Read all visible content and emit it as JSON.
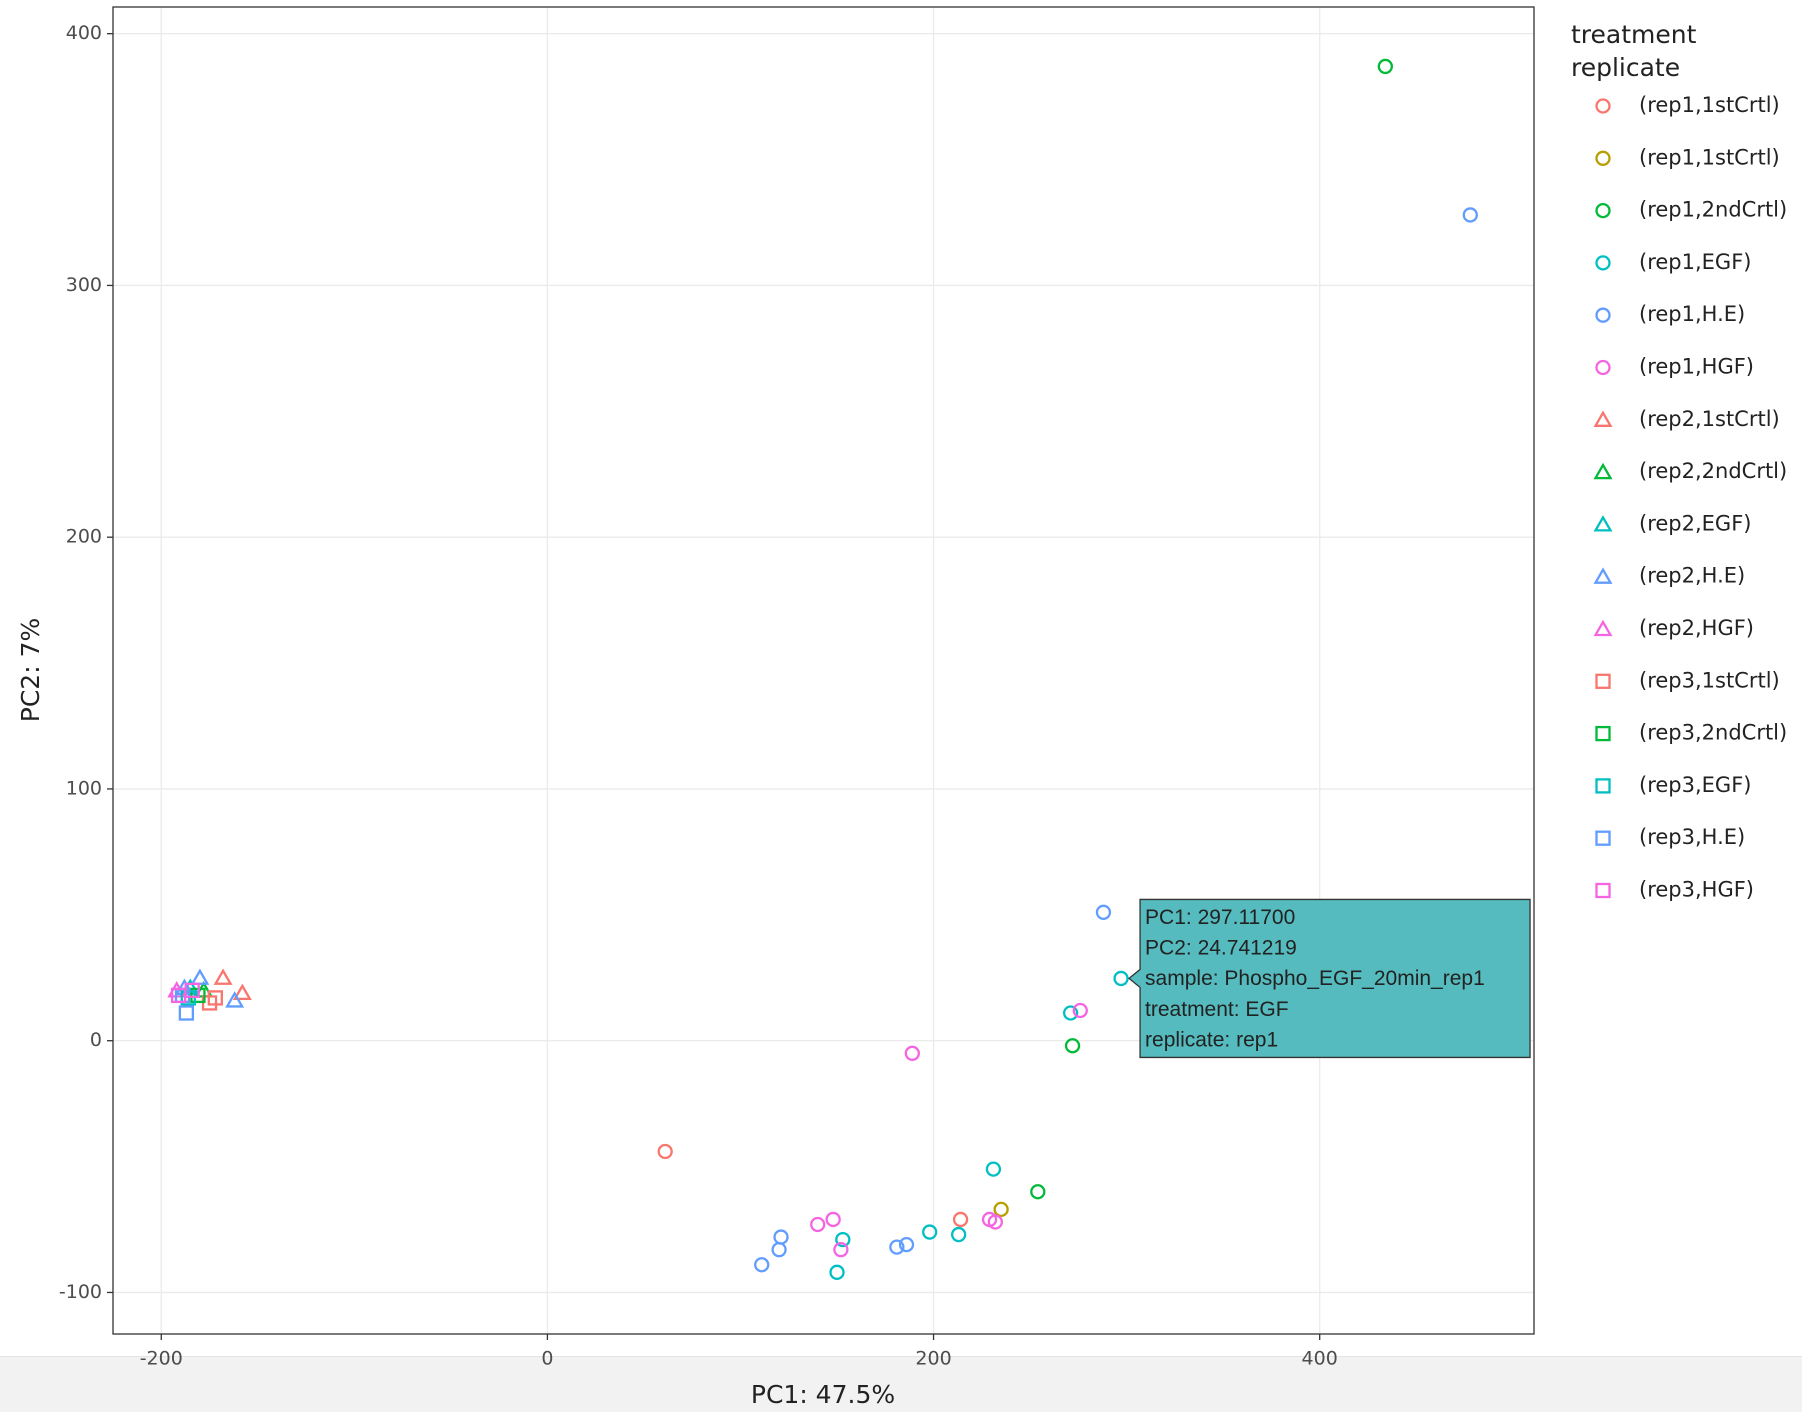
{
  "chart_data": {
    "type": "scatter",
    "xlabel": "PC1: 47.5%",
    "ylabel": "PC2: 7%",
    "legend_title": [
      "treatment",
      "replicate"
    ],
    "legend_position": "right",
    "xlim": [
      -225,
      511
    ],
    "ylim": [
      -116.5,
      410.6
    ],
    "xticks": [
      -200,
      0,
      200,
      400
    ],
    "yticks": [
      -100,
      0,
      100,
      200,
      300,
      400
    ],
    "grid": true,
    "series": [
      {
        "name": "(rep1,1stCrtl)",
        "color": "#F8766D",
        "marker": "circle",
        "x": [
          61,
          214
        ],
        "y": [
          -44,
          -71
        ]
      },
      {
        "name": "(rep1,1stCrtl)",
        "color": "#B79F00",
        "marker": "circle",
        "x": [
          235
        ],
        "y": [
          -67
        ]
      },
      {
        "name": "(rep1,2ndCrtl)",
        "color": "#00BA38",
        "marker": "circle",
        "x": [
          434,
          272,
          254
        ],
        "y": [
          387,
          -2,
          -60
        ]
      },
      {
        "name": "(rep1,EGF)",
        "color": "#00BFC4",
        "marker": "circle",
        "x": [
          297.117,
          271,
          231,
          198,
          213,
          153,
          150
        ],
        "y": [
          24.741219,
          11,
          -51,
          -76,
          -77,
          -79,
          -92
        ]
      },
      {
        "name": "(rep1,H.E)",
        "color": "#619CFF",
        "marker": "circle",
        "x": [
          478,
          288,
          121,
          120,
          111,
          181,
          186
        ],
        "y": [
          328,
          51,
          -78,
          -83,
          -89,
          -82,
          -81
        ]
      },
      {
        "name": "(rep1,HGF)",
        "color": "#F564E3",
        "marker": "circle",
        "x": [
          276,
          189,
          140,
          148,
          152,
          229,
          232
        ],
        "y": [
          12,
          -5,
          -73,
          -71,
          -83,
          -71,
          -72
        ]
      },
      {
        "name": "(rep2,1stCrtl)",
        "color": "#F8766D",
        "marker": "triangle",
        "x": [
          -168,
          -158
        ],
        "y": [
          25,
          19
        ]
      },
      {
        "name": "(rep2,2ndCrtl)",
        "color": "#00BA38",
        "marker": "triangle",
        "x": [
          -178
        ],
        "y": [
          20
        ]
      },
      {
        "name": "(rep2,EGF)",
        "color": "#00BFC4",
        "marker": "triangle",
        "x": [
          -185
        ],
        "y": [
          21
        ]
      },
      {
        "name": "(rep2,H.E)",
        "color": "#619CFF",
        "marker": "triangle",
        "x": [
          -180,
          -162,
          -188
        ],
        "y": [
          25,
          16,
          21
        ]
      },
      {
        "name": "(rep2,HGF)",
        "color": "#F564E3",
        "marker": "triangle",
        "x": [
          -192
        ],
        "y": [
          20
        ]
      },
      {
        "name": "(rep3,1stCrtl)",
        "color": "#F8766D",
        "marker": "square",
        "x": [
          -172,
          -175
        ],
        "y": [
          17,
          15
        ]
      },
      {
        "name": "(rep3,2ndCrtl)",
        "color": "#00BA38",
        "marker": "square",
        "x": [
          -181
        ],
        "y": [
          18
        ]
      },
      {
        "name": "(rep3,EGF)",
        "color": "#00BFC4",
        "marker": "square",
        "x": [
          -186
        ],
        "y": [
          17
        ]
      },
      {
        "name": "(rep3,H.E)",
        "color": "#619CFF",
        "marker": "square",
        "x": [
          -187,
          -189
        ],
        "y": [
          11,
          18
        ]
      },
      {
        "name": "(rep3,HGF)",
        "color": "#F564E3",
        "marker": "square",
        "x": [
          -191,
          -184
        ],
        "y": [
          18,
          20
        ]
      }
    ],
    "tooltip": {
      "series": 3,
      "point": 0,
      "color": "#55BBBE",
      "lines": [
        "PC1:  297.11700",
        "PC2:  24.741219",
        "sample: Phospho_EGF_20min_rep1",
        "treatment: EGF",
        "replicate: rep1"
      ]
    }
  }
}
